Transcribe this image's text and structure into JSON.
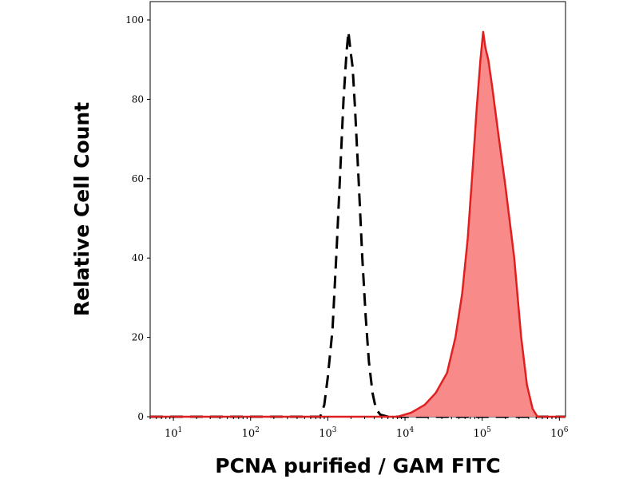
{
  "chart_data": {
    "type": "area",
    "xlabel": "PCNA purified / GAM FITC",
    "ylabel": "Relative Cell Count",
    "xscale": "log",
    "xlim": [
      5,
      1200000
    ],
    "ylim": [
      0,
      100
    ],
    "grid": false,
    "legend": "none",
    "yticks": [
      {
        "value": 0,
        "label": "0"
      },
      {
        "value": 20,
        "label": "20"
      },
      {
        "value": 40,
        "label": "40"
      },
      {
        "value": 60,
        "label": "60"
      },
      {
        "value": 80,
        "label": "80"
      },
      {
        "value": 100,
        "label": "100"
      }
    ],
    "xticks": [
      {
        "value": 10,
        "base": "10",
        "exp": "1"
      },
      {
        "value": 100,
        "base": "10",
        "exp": "2"
      },
      {
        "value": 1000,
        "base": "10",
        "exp": "3"
      },
      {
        "value": 10000,
        "base": "10",
        "exp": "4"
      },
      {
        "value": 100000,
        "base": "10",
        "exp": "5"
      },
      {
        "value": 1000000,
        "base": "10",
        "exp": "6"
      }
    ],
    "series": [
      {
        "role": "control",
        "style": "dashed",
        "color": "#000000",
        "filled": false,
        "points": [
          [
            5,
            0
          ],
          [
            800,
            0
          ],
          [
            900,
            3
          ],
          [
            1000,
            10
          ],
          [
            1150,
            22
          ],
          [
            1300,
            42
          ],
          [
            1450,
            62
          ],
          [
            1600,
            80
          ],
          [
            1750,
            92
          ],
          [
            1850,
            97
          ],
          [
            1950,
            93
          ],
          [
            2100,
            88
          ],
          [
            2250,
            78
          ],
          [
            2500,
            60
          ],
          [
            2800,
            40
          ],
          [
            3100,
            25
          ],
          [
            3400,
            14
          ],
          [
            3800,
            6
          ],
          [
            4200,
            2
          ],
          [
            4800,
            0.5
          ],
          [
            6000,
            0
          ],
          [
            1200000,
            0
          ]
        ]
      },
      {
        "role": "sample",
        "style": "solid",
        "color": "#e02020",
        "fill": "#f88a8a",
        "filled": true,
        "points": [
          [
            5,
            0
          ],
          [
            8000,
            0
          ],
          [
            12000,
            1
          ],
          [
            18000,
            3
          ],
          [
            25000,
            6
          ],
          [
            35000,
            11
          ],
          [
            45000,
            20
          ],
          [
            55000,
            31
          ],
          [
            65000,
            45
          ],
          [
            75000,
            62
          ],
          [
            85000,
            78
          ],
          [
            95000,
            90
          ],
          [
            103000,
            97
          ],
          [
            110000,
            93
          ],
          [
            120000,
            90
          ],
          [
            135000,
            83
          ],
          [
            160000,
            72
          ],
          [
            200000,
            58
          ],
          [
            260000,
            40
          ],
          [
            320000,
            20
          ],
          [
            380000,
            8
          ],
          [
            450000,
            2
          ],
          [
            520000,
            0
          ],
          [
            1200000,
            0
          ]
        ]
      }
    ]
  }
}
